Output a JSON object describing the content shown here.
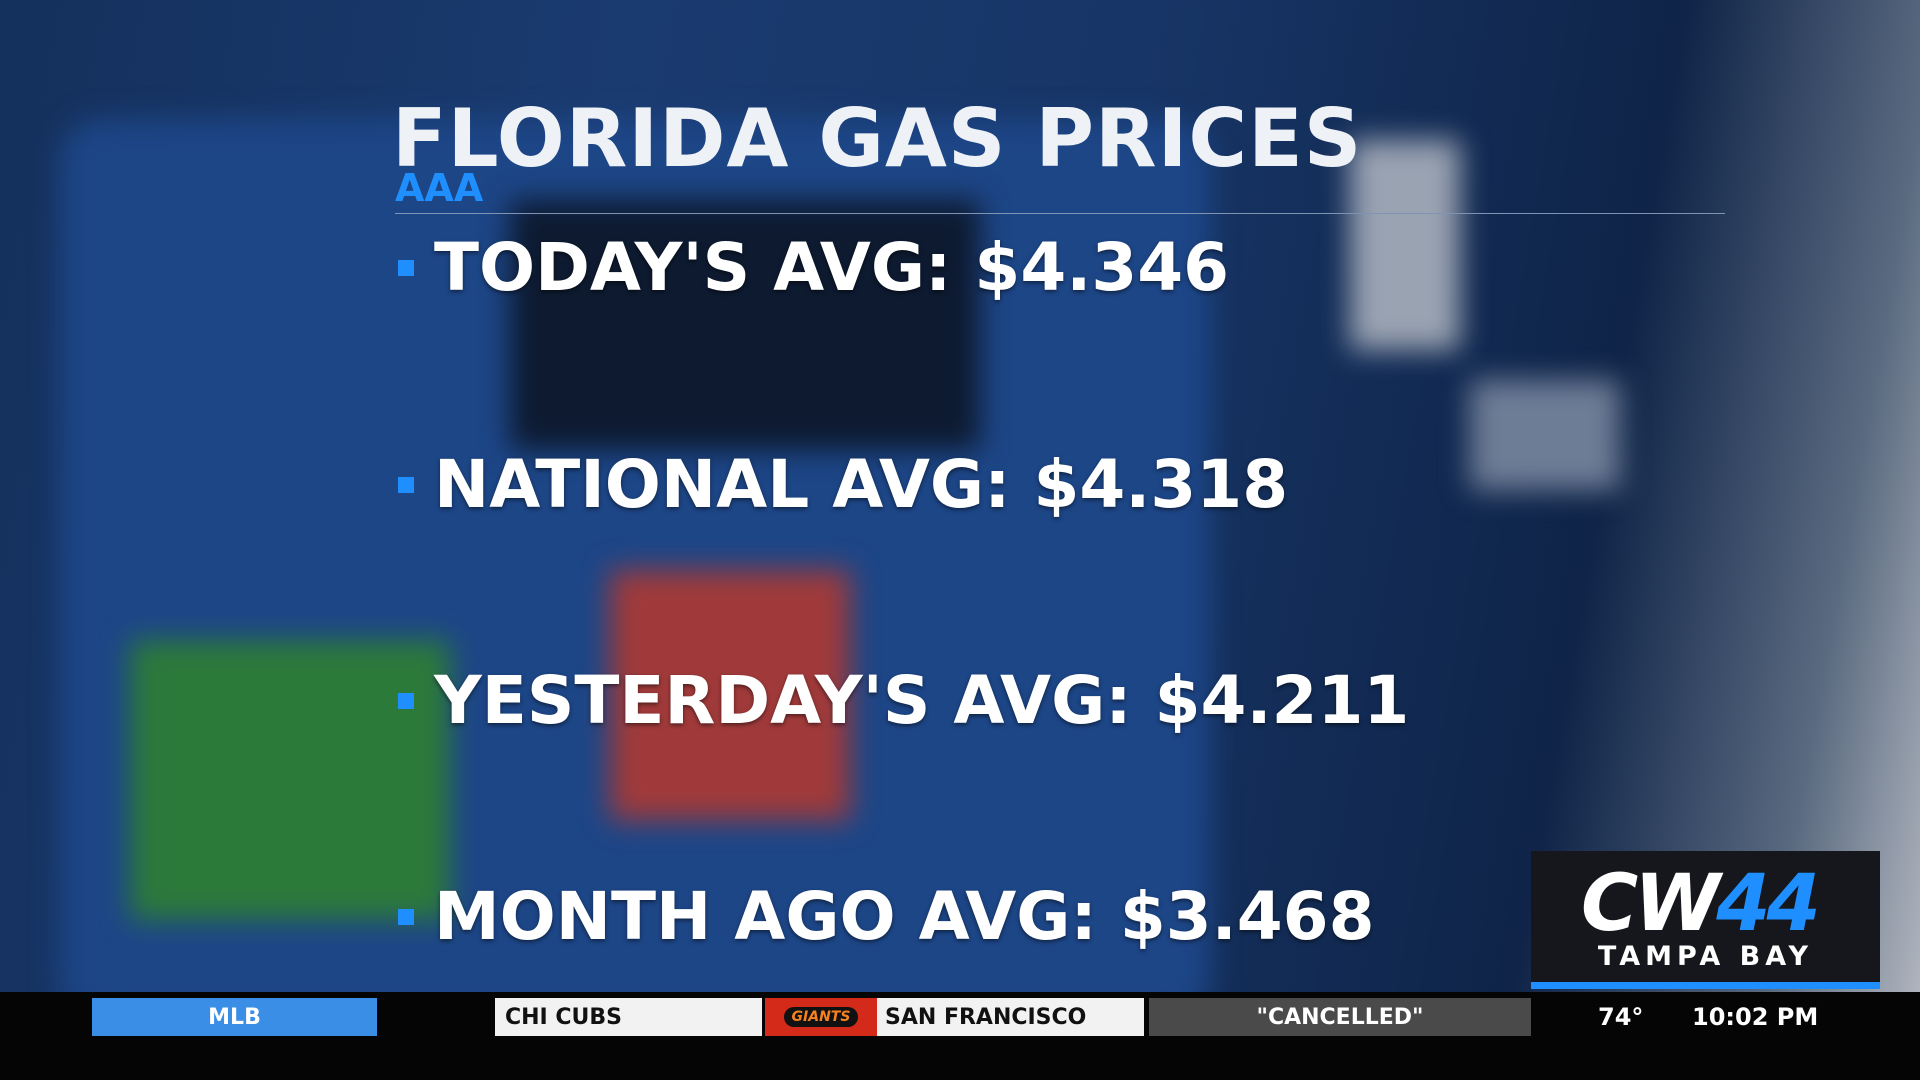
{
  "header": {
    "title": "FLORIDA GAS PRICES",
    "source": "AAA"
  },
  "items": [
    "TODAY'S AVG: $4.346",
    "NATIONAL AVG: $4.318",
    "YESTERDAY'S AVG: $4.211",
    "MONTH AGO AVG: $3.468"
  ],
  "logo": {
    "network": "CW",
    "channel": "44",
    "market": "TAMPA BAY"
  },
  "ticker": {
    "league": "MLB",
    "away_team": "CHI CUBS",
    "home_logo": "GIANTS",
    "home_team": "SAN FRANCISCO",
    "status": "\"CANCELLED\"",
    "temperature": "74°",
    "time": "10:02 PM"
  }
}
